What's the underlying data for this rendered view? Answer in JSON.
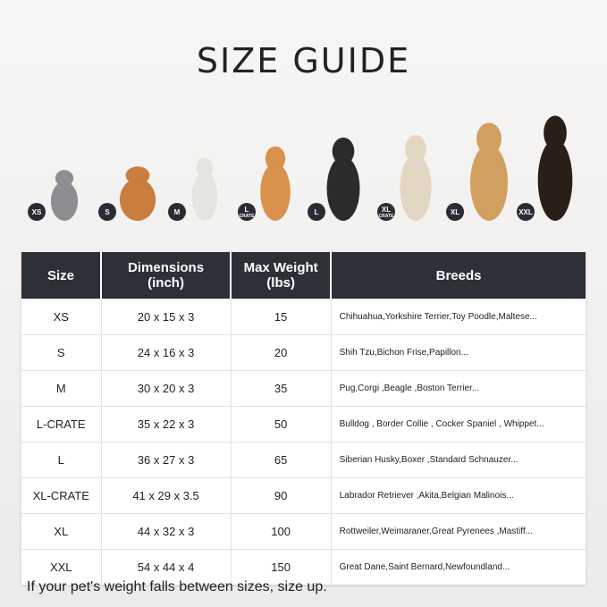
{
  "title": "SIZE GUIDE",
  "pets": [
    {
      "label": "XS",
      "sub": "",
      "color": "#8d8d92",
      "animal": "cat"
    },
    {
      "label": "S",
      "sub": "",
      "color": "#c97d3e",
      "animal": "pomeranian"
    },
    {
      "label": "M",
      "sub": "",
      "color": "#e6e4e0",
      "animal": "french-bulldog"
    },
    {
      "label": "L",
      "sub": "CRATE",
      "color": "#d9914e",
      "animal": "shiba-inu"
    },
    {
      "label": "L",
      "sub": "",
      "color": "#2b2b2b",
      "animal": "border-collie"
    },
    {
      "label": "XL",
      "sub": "CRATE",
      "color": "#e3d7c3",
      "animal": "labrador"
    },
    {
      "label": "XL",
      "sub": "",
      "color": "#d1a060",
      "animal": "golden-retriever"
    },
    {
      "label": "XXL",
      "sub": "",
      "color": "#2a1e18",
      "animal": "doberman"
    }
  ],
  "table": {
    "headers": [
      "Size",
      "Dimensions\n(inch)",
      "Max Weight\n(lbs)",
      "Breeds"
    ],
    "rows": [
      [
        "XS",
        "20 x 15 x 3",
        "15",
        "Chihuahua,Yorkshire Terrier,Toy Poodle,Maltese..."
      ],
      [
        "S",
        "24 x 16 x 3",
        "20",
        "Shih Tzu,Bichon Frise,Papillon..."
      ],
      [
        "M",
        "30 x 20 x 3",
        "35",
        "Pug,Corgi ,Beagle ,Boston Terrier..."
      ],
      [
        "L-CRATE",
        "35 x 22 x 3",
        "50",
        "Bulldog , Border Collie , Cocker Spaniel , Whippet..."
      ],
      [
        "L",
        "36 x 27 x 3",
        "65",
        "Siberian Husky,Boxer ,Standard Schnauzer..."
      ],
      [
        "XL-CRATE",
        "41 x 29 x 3.5",
        "90",
        "Labrador Retriever ,Akita,Belgian Malinois..."
      ],
      [
        "XL",
        "44 x 32 x 3",
        "100",
        "Rottweiler,Weimaraner,Great Pyrenees ,Mastiff..."
      ],
      [
        "XXL",
        "54 x 44 x 4",
        "150",
        "Great Dane,Saint Bernard,Newfoundland..."
      ]
    ]
  },
  "note": "If your pet's weight falls between sizes, size up."
}
